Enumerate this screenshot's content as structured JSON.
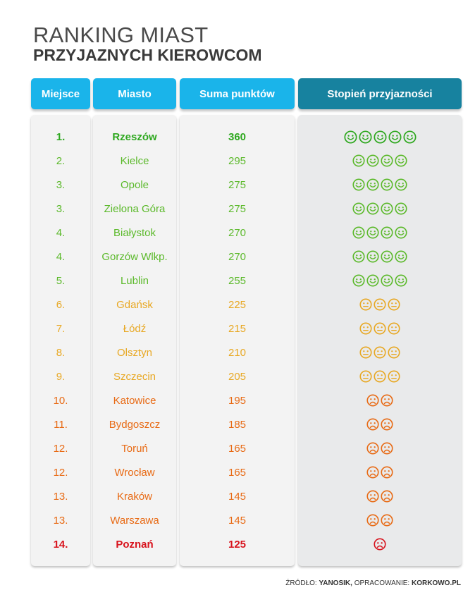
{
  "title": {
    "line1": "RANKING MIAST",
    "line2": "PRZYJAZNYCH KIEROWCOM"
  },
  "headers": {
    "rank": "Miejsce",
    "city": "Miasto",
    "points": "Suma punktów",
    "friendliness": "Stopień przyjazności"
  },
  "colors": {
    "header_light": "#1ab4ea",
    "header_dark": "#17829f",
    "very_good": "#2ea81f",
    "good": "#5bb92a",
    "neutral": "#e8a823",
    "bad": "#e86a14",
    "worst": "#d8121c"
  },
  "source": {
    "label": "ŹRÓDŁO:",
    "name": "YANOSIK,",
    "prepared_label": "OPRACOWANIE:",
    "prepared_by": "KORKOWO.PL"
  },
  "chart_data": {
    "type": "table",
    "columns": [
      "Miejsce",
      "Miasto",
      "Suma punktów",
      "Stopień przyjazności"
    ],
    "rows": [
      {
        "rank": "1.",
        "city": "Rzeszów",
        "points": 360,
        "faces": 5,
        "mood": "happy",
        "tier": "very_good",
        "bold": true
      },
      {
        "rank": "2.",
        "city": "Kielce",
        "points": 295,
        "faces": 4,
        "mood": "happy",
        "tier": "good",
        "bold": false
      },
      {
        "rank": "3.",
        "city": "Opole",
        "points": 275,
        "faces": 4,
        "mood": "happy",
        "tier": "good",
        "bold": false
      },
      {
        "rank": "3.",
        "city": "Zielona Góra",
        "points": 275,
        "faces": 4,
        "mood": "happy",
        "tier": "good",
        "bold": false
      },
      {
        "rank": "4.",
        "city": "Białystok",
        "points": 270,
        "faces": 4,
        "mood": "happy",
        "tier": "good",
        "bold": false
      },
      {
        "rank": "4.",
        "city": "Gorzów Wlkp.",
        "points": 270,
        "faces": 4,
        "mood": "happy",
        "tier": "good",
        "bold": false
      },
      {
        "rank": "5.",
        "city": "Lublin",
        "points": 255,
        "faces": 4,
        "mood": "happy",
        "tier": "good",
        "bold": false
      },
      {
        "rank": "6.",
        "city": "Gdańsk",
        "points": 225,
        "faces": 3,
        "mood": "neutral",
        "tier": "neutral",
        "bold": false
      },
      {
        "rank": "7.",
        "city": "Łódź",
        "points": 215,
        "faces": 3,
        "mood": "neutral",
        "tier": "neutral",
        "bold": false
      },
      {
        "rank": "8.",
        "city": "Olsztyn",
        "points": 210,
        "faces": 3,
        "mood": "neutral",
        "tier": "neutral",
        "bold": false
      },
      {
        "rank": "9.",
        "city": "Szczecin",
        "points": 205,
        "faces": 3,
        "mood": "neutral",
        "tier": "neutral",
        "bold": false
      },
      {
        "rank": "10.",
        "city": "Katowice",
        "points": 195,
        "faces": 2,
        "mood": "sad",
        "tier": "bad",
        "bold": false
      },
      {
        "rank": "11.",
        "city": "Bydgoszcz",
        "points": 185,
        "faces": 2,
        "mood": "sad",
        "tier": "bad",
        "bold": false
      },
      {
        "rank": "12.",
        "city": "Toruń",
        "points": 165,
        "faces": 2,
        "mood": "sad",
        "tier": "bad",
        "bold": false
      },
      {
        "rank": "12.",
        "city": "Wrocław",
        "points": 165,
        "faces": 2,
        "mood": "sad",
        "tier": "bad",
        "bold": false
      },
      {
        "rank": "13.",
        "city": "Kraków",
        "points": 145,
        "faces": 2,
        "mood": "sad",
        "tier": "bad",
        "bold": false
      },
      {
        "rank": "13.",
        "city": "Warszawa",
        "points": 145,
        "faces": 2,
        "mood": "sad",
        "tier": "bad",
        "bold": false
      },
      {
        "rank": "14.",
        "city": "Poznań",
        "points": 125,
        "faces": 1,
        "mood": "sad",
        "tier": "worst",
        "bold": true
      }
    ]
  }
}
